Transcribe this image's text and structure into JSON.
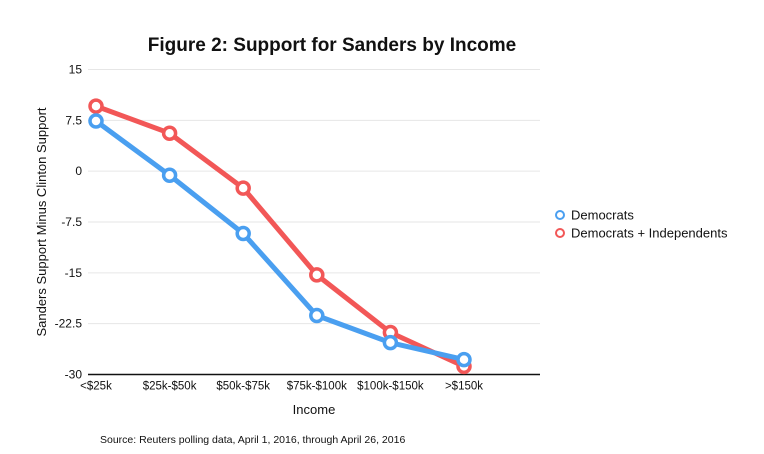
{
  "chart_data": {
    "type": "line",
    "title": "Figure 2: Support for Sanders by Income",
    "xlabel": "Income",
    "ylabel": "Sanders Support Minus Clinton Support",
    "categories": [
      "<$25k",
      "$25k-$50k",
      "$50k-$75k",
      "$75k-$100k",
      "$100k-$150k",
      ">$150k"
    ],
    "ylim": [
      -30,
      15
    ],
    "yticks": [
      15,
      7.5,
      0,
      -7.5,
      -15,
      -22.5,
      -30
    ],
    "ytick_labels": [
      "15",
      "7.5",
      "0",
      "-7.5",
      "-15",
      "-22.5",
      "-30"
    ],
    "grid": true,
    "legend_position": "right",
    "series": [
      {
        "name": "Democrats",
        "color": "#4a9ff0",
        "values": [
          7.4,
          -0.6,
          -9.2,
          -21.3,
          -25.3,
          -27.8
        ]
      },
      {
        "name": "Democrats + Independents",
        "color": "#f25757",
        "values": [
          9.6,
          5.6,
          -2.5,
          -15.3,
          -23.8,
          -28.8
        ]
      }
    ],
    "source": "Source: Reuters polling data, April 1, 2016, through April 26, 2016"
  }
}
